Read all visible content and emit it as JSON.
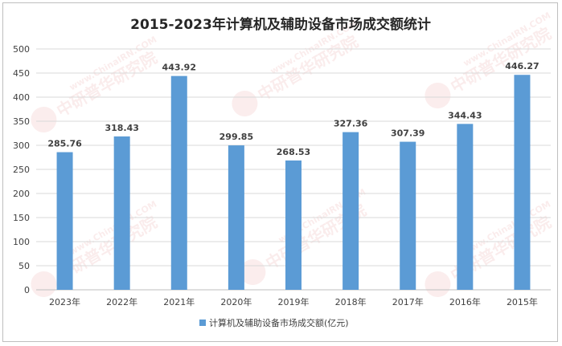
{
  "chart_data": {
    "type": "bar",
    "title": "2015-2023年计算机及辅助设备市场成交额统计",
    "categories": [
      "2023年",
      "2022年",
      "2021年",
      "2020年",
      "2019年",
      "2018年",
      "2017年",
      "2016年",
      "2015年"
    ],
    "series": [
      {
        "name": "计算机及辅助设备市场成交额(亿元)",
        "values": [
          285.76,
          318.43,
          443.92,
          299.85,
          268.53,
          327.36,
          307.39,
          344.43,
          446.27
        ],
        "labels": [
          "285.76",
          "318.43",
          "443.92",
          "299.85",
          "268.53",
          "327.36",
          "307.39",
          "344.43",
          "446.27"
        ],
        "color": "#5b9bd5"
      }
    ],
    "yticks": [
      "0",
      "50",
      "100",
      "150",
      "200",
      "250",
      "300",
      "350",
      "400",
      "450",
      "500"
    ],
    "ylim": [
      0,
      500
    ],
    "grid": true,
    "legend_position": "bottom"
  },
  "watermark": {
    "cn": "中研普华研究院",
    "en": "www.ChinaIRN.COM",
    "logo": "CHINA"
  }
}
